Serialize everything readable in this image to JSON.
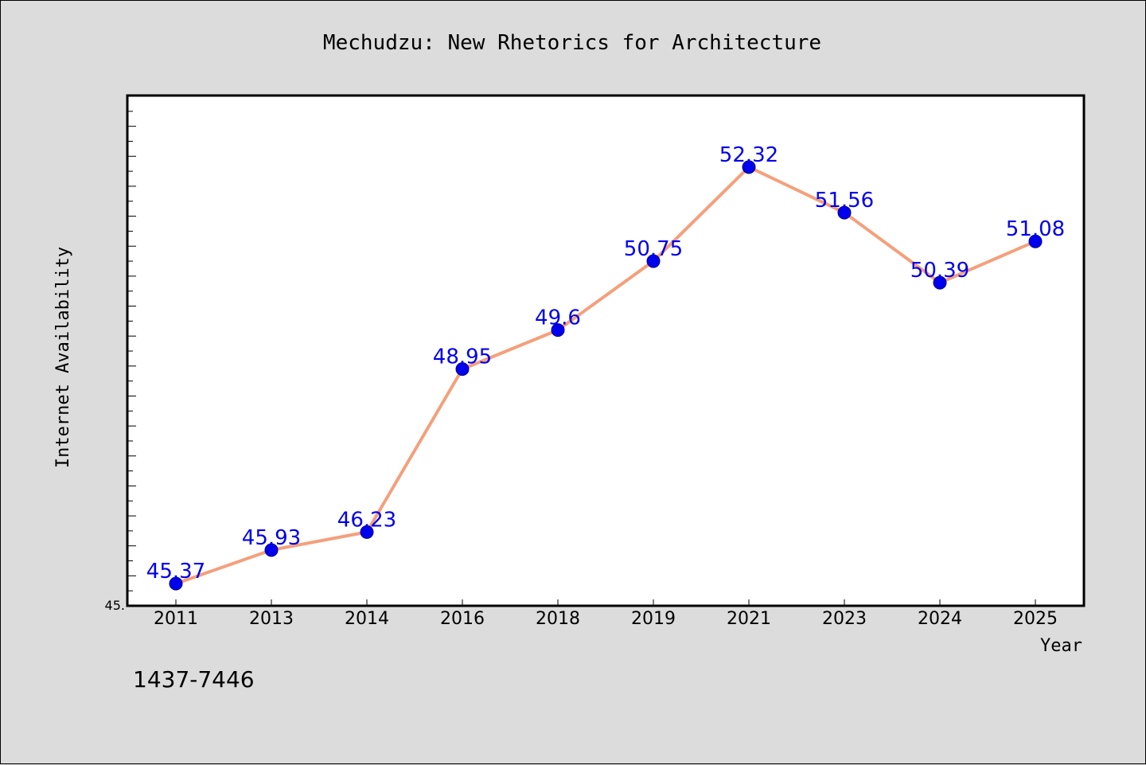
{
  "chart_data": {
    "type": "line",
    "title": "Mechudzu: New Rhetorics for Architecture",
    "xlabel": "Year",
    "ylabel": "Internet Availability",
    "categories": [
      "2011",
      "2013",
      "2014",
      "2016",
      "2018",
      "2019",
      "2021",
      "2023",
      "2024",
      "2025"
    ],
    "series": [
      {
        "values": [
          45.37,
          45.93,
          46.23,
          48.95,
          49.6,
          50.75,
          52.32,
          51.56,
          50.39,
          51.08
        ],
        "data_labels": [
          "45.37",
          "45.93",
          "46.23",
          "48.95",
          "49.6",
          "50.75",
          "52.32",
          "51.56",
          "50.39",
          "51.08"
        ]
      }
    ],
    "ylim": [
      45,
      53.5
    ],
    "ytick_labels": [
      {
        "value": 45,
        "label": "45."
      }
    ],
    "grid": false,
    "legend": "none",
    "colors": {
      "line": "#f4a07c",
      "marker": "#0000ee",
      "marker_edge": "#00008b",
      "data_label": "#0000ee",
      "plot_bg": "#ffffff",
      "figure_bg": "#dcdcdc"
    }
  },
  "footnote": "1437-7446"
}
